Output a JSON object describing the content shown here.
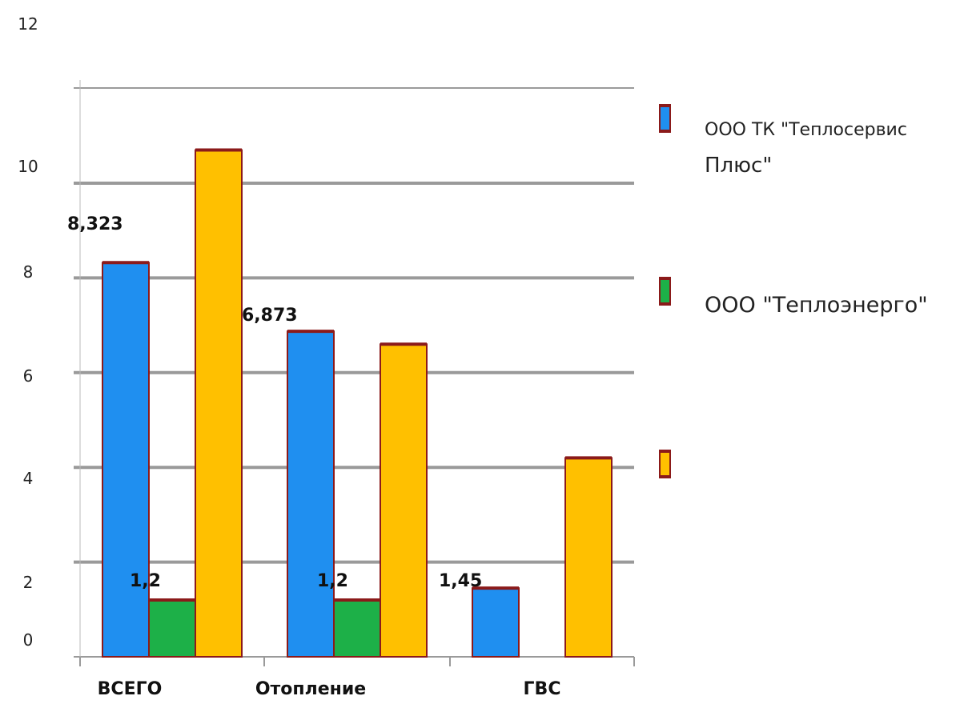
{
  "chart_data": {
    "type": "bar",
    "categories": [
      "ВСЕГО",
      "Отопление",
      "ГВС"
    ],
    "series": [
      {
        "name": "ООО ТК \"Теплосервис Плюс\"",
        "legend_lines": [
          "ООО ТК \"Теплосервис",
          "Плюс\""
        ],
        "color": "#1f8ff0",
        "values": [
          8.323,
          6.873,
          1.45
        ],
        "labels": [
          "8,323",
          "6,873",
          "1,45"
        ]
      },
      {
        "name": "ООО \"Теплоэнерго\"",
        "legend_lines": [
          "ООО \"Теплоэнерго\""
        ],
        "color": "#1db048",
        "values": [
          1.2,
          1.2,
          null
        ],
        "labels": [
          "1,2",
          "1,2",
          ""
        ]
      },
      {
        "legend_lines": [],
        "color": "#ffc000",
        "values": [
          10.7,
          6.6,
          4.2
        ],
        "labels": [
          "",
          "",
          ""
        ]
      }
    ],
    "y_ticks": [
      "0",
      "2",
      "4",
      "6",
      "8",
      "10",
      "12"
    ],
    "ylim": [
      0,
      12
    ],
    "grid": true,
    "legend_position": "right",
    "edge_color": "#8b1a1a"
  }
}
